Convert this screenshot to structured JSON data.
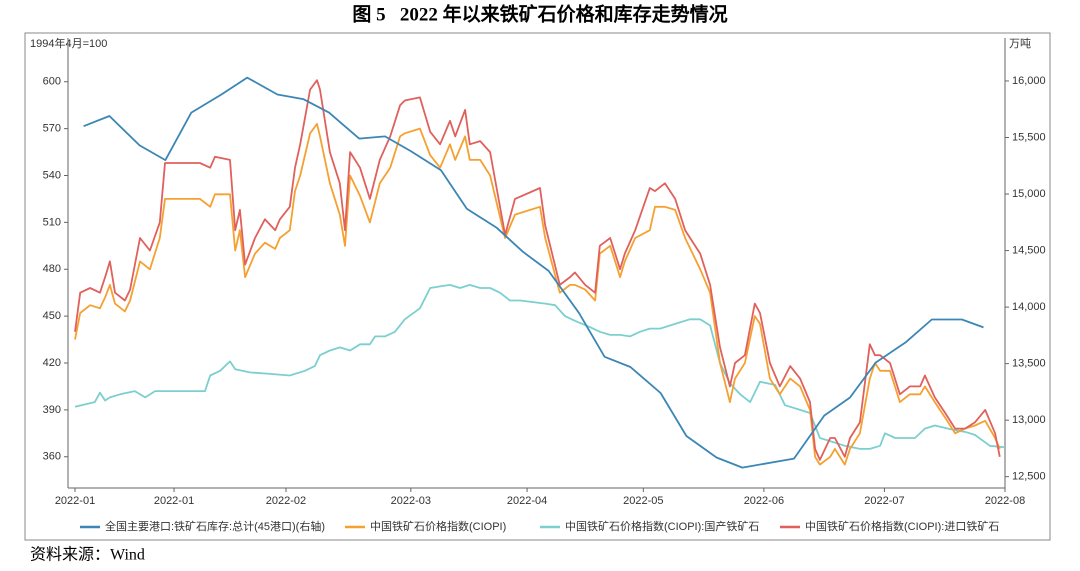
{
  "title": "图 5   2022 年以来铁矿石价格和库存走势情况",
  "source": "资料来源：Wind",
  "chart_data": {
    "type": "line",
    "ylabel": "1994年4月=100",
    "y2label": "万吨",
    "xlim": [
      0,
      216
    ],
    "xticks": [
      {
        "value": 0,
        "label": "2022-01"
      },
      {
        "value": 23,
        "label": "2022-01"
      },
      {
        "value": 49,
        "label": "2022-02"
      },
      {
        "value": 78,
        "label": "2022-03"
      },
      {
        "value": 105,
        "label": "2022-04"
      },
      {
        "value": 132,
        "label": "2022-05"
      },
      {
        "value": 160,
        "label": "2022-06"
      },
      {
        "value": 188,
        "label": "2022-07"
      },
      {
        "value": 216,
        "label": "2022-08"
      }
    ],
    "ylim": [
      340,
      628
    ],
    "yticks": [
      360,
      390,
      420,
      450,
      480,
      510,
      540,
      570,
      600
    ],
    "y2lim": [
      12400,
      16380
    ],
    "y2ticks": [
      {
        "value": 12500,
        "label": "12,500"
      },
      {
        "value": 13000,
        "label": "13,000"
      },
      {
        "value": 13500,
        "label": "13,500"
      },
      {
        "value": 14000,
        "label": "14,000"
      },
      {
        "value": 14500,
        "label": "14,500"
      },
      {
        "value": 15000,
        "label": "15,000"
      },
      {
        "value": 15500,
        "label": "15,500"
      },
      {
        "value": 16000,
        "label": "16,000"
      }
    ],
    "grid": false,
    "legend": "bottom",
    "series": [
      {
        "name": "全国主要港口:铁矿石库存:总计(45港口)(右轴)",
        "color": "#3b86b5",
        "axis": "y2",
        "x": [
          2,
          8,
          15,
          21,
          27,
          34,
          40,
          47,
          53,
          59,
          66,
          72,
          78,
          85,
          91,
          98,
          104,
          110,
          117,
          123,
          129,
          136,
          142,
          149,
          155,
          167,
          174,
          180,
          186,
          193,
          199,
          206,
          211
        ],
        "values": [
          15600,
          15690,
          15430,
          15300,
          15720,
          15880,
          16030,
          15880,
          15840,
          15720,
          15490,
          15510,
          15380,
          15210,
          14870,
          14700,
          14490,
          14320,
          13950,
          13560,
          13470,
          13240,
          12860,
          12670,
          12580,
          12660,
          13040,
          13200,
          13510,
          13690,
          13890,
          13890,
          13820
        ]
      },
      {
        "name": "中国铁矿石价格指数(CIOPI)",
        "color": "#f5a030",
        "x": [
          0,
          1.2,
          3.5,
          5.8,
          7.0,
          8.1,
          9.3,
          11.6,
          12.8,
          15.1,
          17.4,
          19.7,
          20.9,
          24.4,
          29.0,
          31.4,
          32.5,
          36.0,
          37.2,
          38.3,
          39.5,
          41.8,
          44.1,
          46.5,
          47.6,
          49.9,
          51.1,
          52.3,
          54.6,
          56.2,
          56.9,
          59.2,
          61.5,
          62.7,
          63.9,
          66.2,
          68.5,
          70.8,
          73.2,
          75.5,
          76.6,
          80.1,
          82.5,
          84.8,
          87.1,
          88.3,
          90.6,
          91.7,
          94.1,
          96.4,
          99.9,
          102.2,
          108.0,
          109.2,
          112.6,
          115.0,
          116.1,
          118.5,
          120.8,
          121.9,
          124.3,
          126.6,
          127.7,
          130.1,
          133.5,
          134.7,
          137.0,
          139.4,
          141.7,
          145.2,
          147.5,
          149.8,
          152.1,
          153.3,
          155.6,
          157.9,
          159.1,
          161.4,
          163.7,
          166.1,
          168.4,
          170.7,
          171.9,
          173.0,
          175.4,
          176.5,
          178.8,
          180.0,
          182.3,
          184.6,
          185.8,
          187.0,
          189.3,
          191.6,
          193.9,
          196.3,
          197.4,
          199.7,
          202.1,
          204.4,
          206.7,
          209.0,
          211.4,
          213.7,
          214.8
        ],
        "values": [
          435,
          452,
          457,
          455,
          462,
          470,
          458,
          453,
          460,
          485,
          480,
          500,
          525,
          525,
          525,
          520,
          528,
          528,
          492,
          505,
          475,
          490,
          497,
          493,
          500,
          505,
          530,
          540,
          567,
          573,
          565,
          535,
          515,
          495,
          540,
          527,
          510,
          535,
          545,
          565,
          567,
          570,
          553,
          545,
          560,
          550,
          565,
          550,
          550,
          540,
          500,
          515,
          520,
          500,
          465,
          470,
          470,
          467,
          460,
          490,
          495,
          475,
          485,
          500,
          505,
          520,
          520,
          518,
          500,
          480,
          465,
          420,
          395,
          410,
          420,
          450,
          445,
          410,
          400,
          410,
          405,
          390,
          360,
          355,
          360,
          365,
          355,
          365,
          375,
          410,
          420,
          415,
          415,
          395,
          400,
          400,
          405,
          395,
          385,
          375,
          378,
          380,
          383,
          372,
          365
        ]
      },
      {
        "name": "中国铁矿石价格指数(CIOPI):国产铁矿石",
        "color": "#7ccfcf",
        "x": [
          0,
          4.6,
          5.8,
          7.0,
          8.1,
          10.5,
          13.9,
          16.3,
          18.6,
          24.4,
          30.2,
          31.4,
          33.7,
          36.0,
          37.2,
          40.6,
          45.3,
          49.9,
          53.4,
          55.7,
          56.9,
          59.2,
          61.5,
          63.9,
          66.2,
          68.5,
          69.7,
          72.0,
          74.3,
          76.6,
          80.1,
          82.5,
          84.8,
          87.1,
          89.4,
          91.7,
          94.1,
          96.4,
          98.7,
          101.0,
          103.4,
          109.2,
          111.5,
          113.8,
          116.1,
          119.6,
          121.9,
          124.3,
          126.6,
          128.9,
          131.2,
          133.5,
          135.9,
          138.2,
          142.8,
          145.2,
          147.5,
          149.8,
          152.1,
          154.5,
          156.8,
          159.1,
          162.6,
          164.9,
          168.4,
          170.7,
          173.0,
          175.4,
          178.8,
          182.3,
          184.6,
          187.0,
          188.1,
          190.5,
          195.1,
          197.4,
          199.7,
          204.4,
          206.7,
          209.0,
          212.5,
          216.0
        ],
        "values": [
          392,
          395,
          401,
          396,
          398,
          400,
          402,
          398,
          402,
          402,
          402,
          412,
          415,
          421,
          416,
          414,
          413,
          412,
          415,
          418,
          425,
          428,
          430,
          428,
          432,
          432,
          437,
          437,
          440,
          448,
          455,
          468,
          469,
          470,
          468,
          470,
          468,
          468,
          465,
          460,
          460,
          458,
          457,
          450,
          447,
          443,
          440,
          438,
          438,
          437,
          440,
          442,
          442,
          444,
          448,
          448,
          444,
          420,
          407,
          400,
          395,
          408,
          406,
          393,
          390,
          388,
          372,
          370,
          367,
          365,
          365,
          367,
          375,
          372,
          372,
          378,
          380,
          377,
          376,
          374,
          367,
          366
        ]
      },
      {
        "name": "中国铁矿石价格指数(CIOPI):进口铁矿石",
        "color": "#e0605c",
        "x": [
          0,
          1.2,
          3.5,
          5.8,
          7.0,
          8.1,
          9.3,
          11.6,
          12.8,
          15.1,
          17.4,
          19.7,
          20.9,
          24.4,
          29.0,
          31.4,
          32.5,
          36.0,
          37.2,
          38.3,
          39.5,
          41.8,
          44.1,
          46.5,
          47.6,
          49.9,
          51.1,
          52.3,
          54.6,
          56.2,
          56.9,
          59.2,
          61.5,
          62.7,
          63.9,
          66.2,
          68.5,
          70.8,
          73.2,
          75.5,
          76.6,
          80.1,
          82.5,
          84.8,
          87.1,
          88.3,
          90.6,
          91.7,
          94.1,
          96.4,
          99.9,
          102.2,
          108.0,
          109.2,
          112.6,
          115.0,
          116.1,
          118.5,
          120.8,
          121.9,
          124.3,
          126.6,
          127.7,
          130.1,
          133.5,
          134.7,
          137.0,
          139.4,
          141.7,
          145.2,
          147.5,
          149.8,
          152.1,
          153.3,
          155.6,
          157.9,
          159.1,
          161.4,
          163.7,
          166.1,
          168.4,
          170.7,
          171.9,
          173.0,
          175.4,
          176.5,
          178.8,
          180.0,
          182.3,
          184.6,
          185.8,
          187.0,
          189.3,
          191.6,
          193.9,
          196.3,
          197.4,
          199.7,
          202.1,
          204.4,
          206.7,
          209.0,
          211.4,
          213.7,
          214.8
        ],
        "values": [
          440,
          465,
          468,
          465,
          475,
          485,
          465,
          460,
          467,
          500,
          492,
          510,
          548,
          548,
          548,
          545,
          552,
          550,
          505,
          518,
          483,
          500,
          512,
          505,
          512,
          520,
          545,
          560,
          595,
          601,
          595,
          555,
          535,
          505,
          555,
          545,
          525,
          550,
          565,
          585,
          588,
          590,
          568,
          560,
          575,
          565,
          582,
          560,
          562,
          555,
          502,
          525,
          532,
          508,
          470,
          475,
          478,
          470,
          465,
          495,
          500,
          480,
          490,
          505,
          532,
          530,
          535,
          525,
          505,
          490,
          470,
          430,
          405,
          420,
          425,
          458,
          452,
          420,
          405,
          418,
          410,
          395,
          365,
          358,
          372,
          372,
          360,
          372,
          382,
          432,
          425,
          425,
          420,
          400,
          405,
          405,
          412,
          398,
          388,
          378,
          378,
          382,
          390,
          375,
          360
        ]
      }
    ]
  }
}
